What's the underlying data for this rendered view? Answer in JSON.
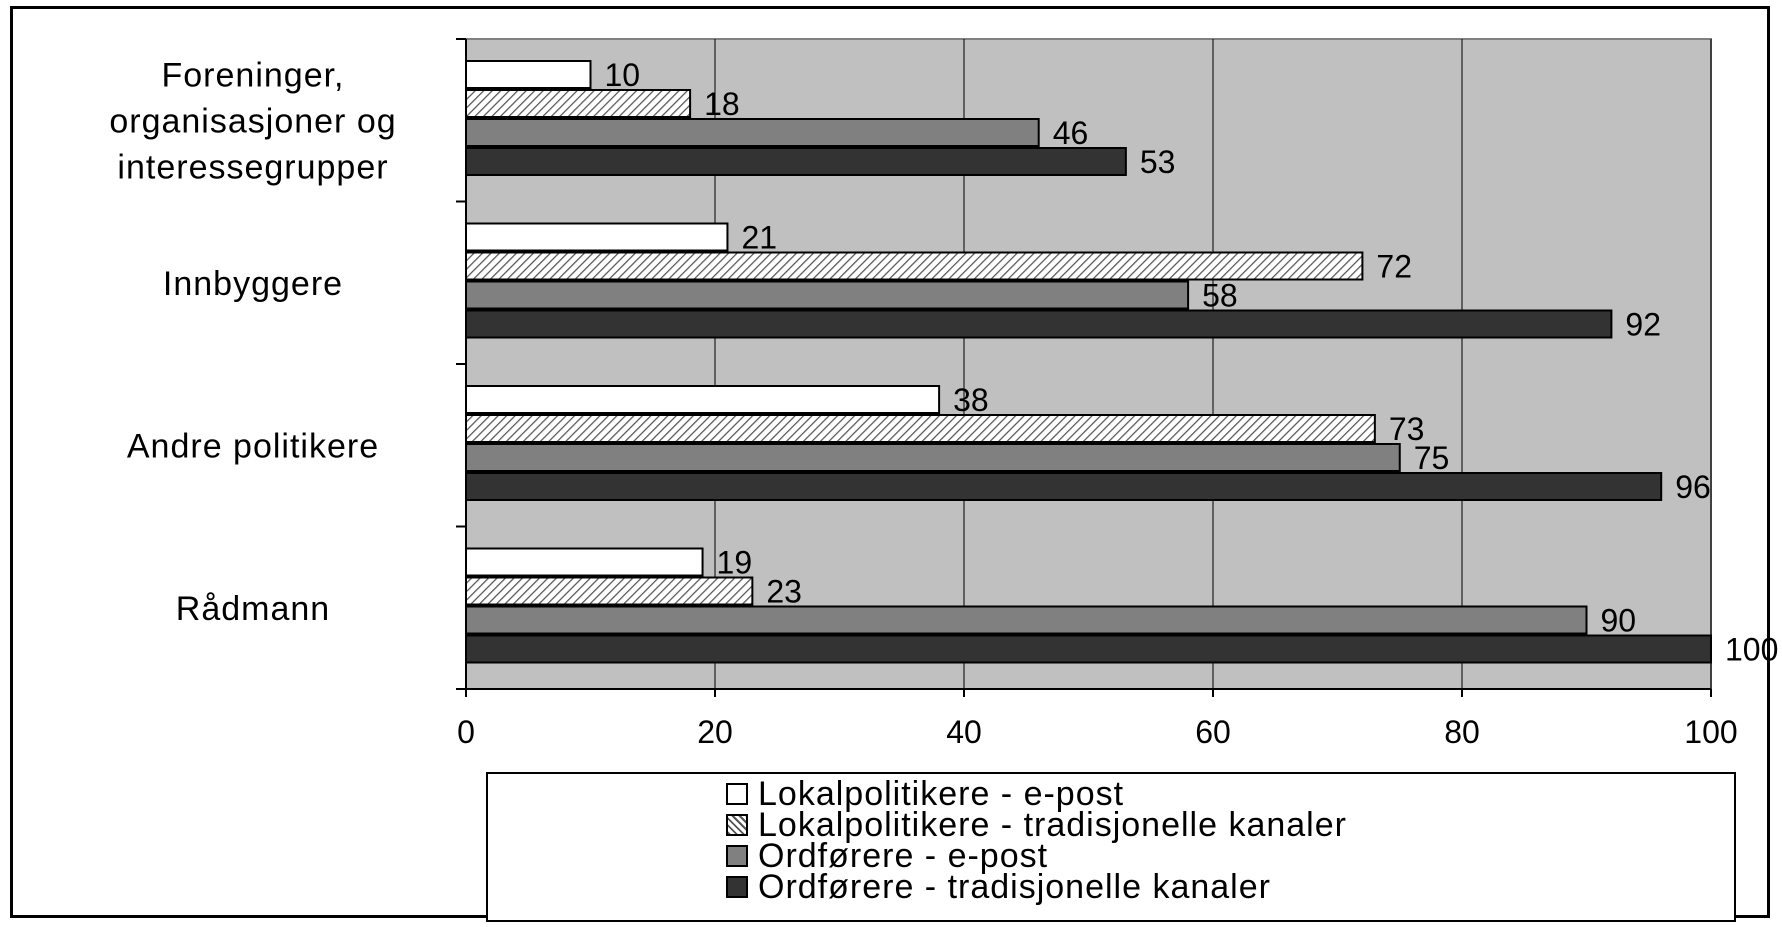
{
  "chart_data": {
    "type": "bar",
    "orientation": "horizontal",
    "categories": [
      [
        "Foreninger,",
        "organisasjoner og",
        "interessegrupper"
      ],
      [
        "Innbyggere"
      ],
      [
        "Andre politikere"
      ],
      [
        "Rådmann"
      ]
    ],
    "series": [
      {
        "name": "Lokalpolitikere - e-post",
        "values": [
          10,
          21,
          38,
          19
        ],
        "fill": "white"
      },
      {
        "name": "Lokalpolitikere - tradisjonelle kanaler",
        "values": [
          18,
          72,
          73,
          23
        ],
        "fill": "hatched"
      },
      {
        "name": "Ordførere - e-post",
        "values": [
          46,
          58,
          75,
          90
        ],
        "fill": "#808080"
      },
      {
        "name": "Ordførere - tradisjonelle kanaler",
        "values": [
          53,
          92,
          96,
          100
        ],
        "fill": "#333333"
      }
    ],
    "xlim": [
      0,
      100
    ],
    "xticks": [
      "0",
      "20",
      "40",
      "60",
      "80",
      "100"
    ],
    "title": "",
    "xlabel": "",
    "ylabel": "",
    "grid": "vertical",
    "legend_position": "bottom",
    "plot_background": "#c0c0c0"
  }
}
